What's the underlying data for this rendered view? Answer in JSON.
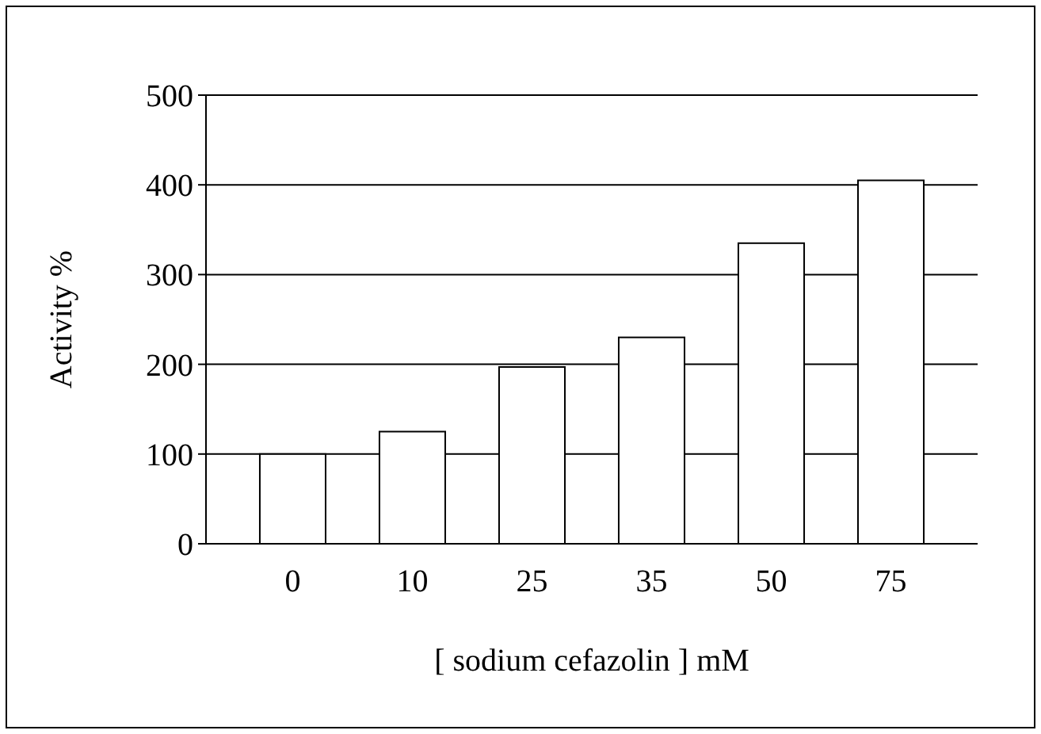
{
  "chart_data": {
    "type": "bar",
    "xlabel": "[ sodium cefazolin ] mM",
    "ylabel": "Activity %",
    "categories": [
      "0",
      "10",
      "25",
      "35",
      "50",
      "75"
    ],
    "values": [
      100,
      125,
      197,
      230,
      335,
      405
    ],
    "color": "#ffffff",
    "ylim": [
      0,
      500
    ],
    "yticks": [
      0,
      100,
      200,
      300,
      400,
      500
    ],
    "grid": "y"
  }
}
